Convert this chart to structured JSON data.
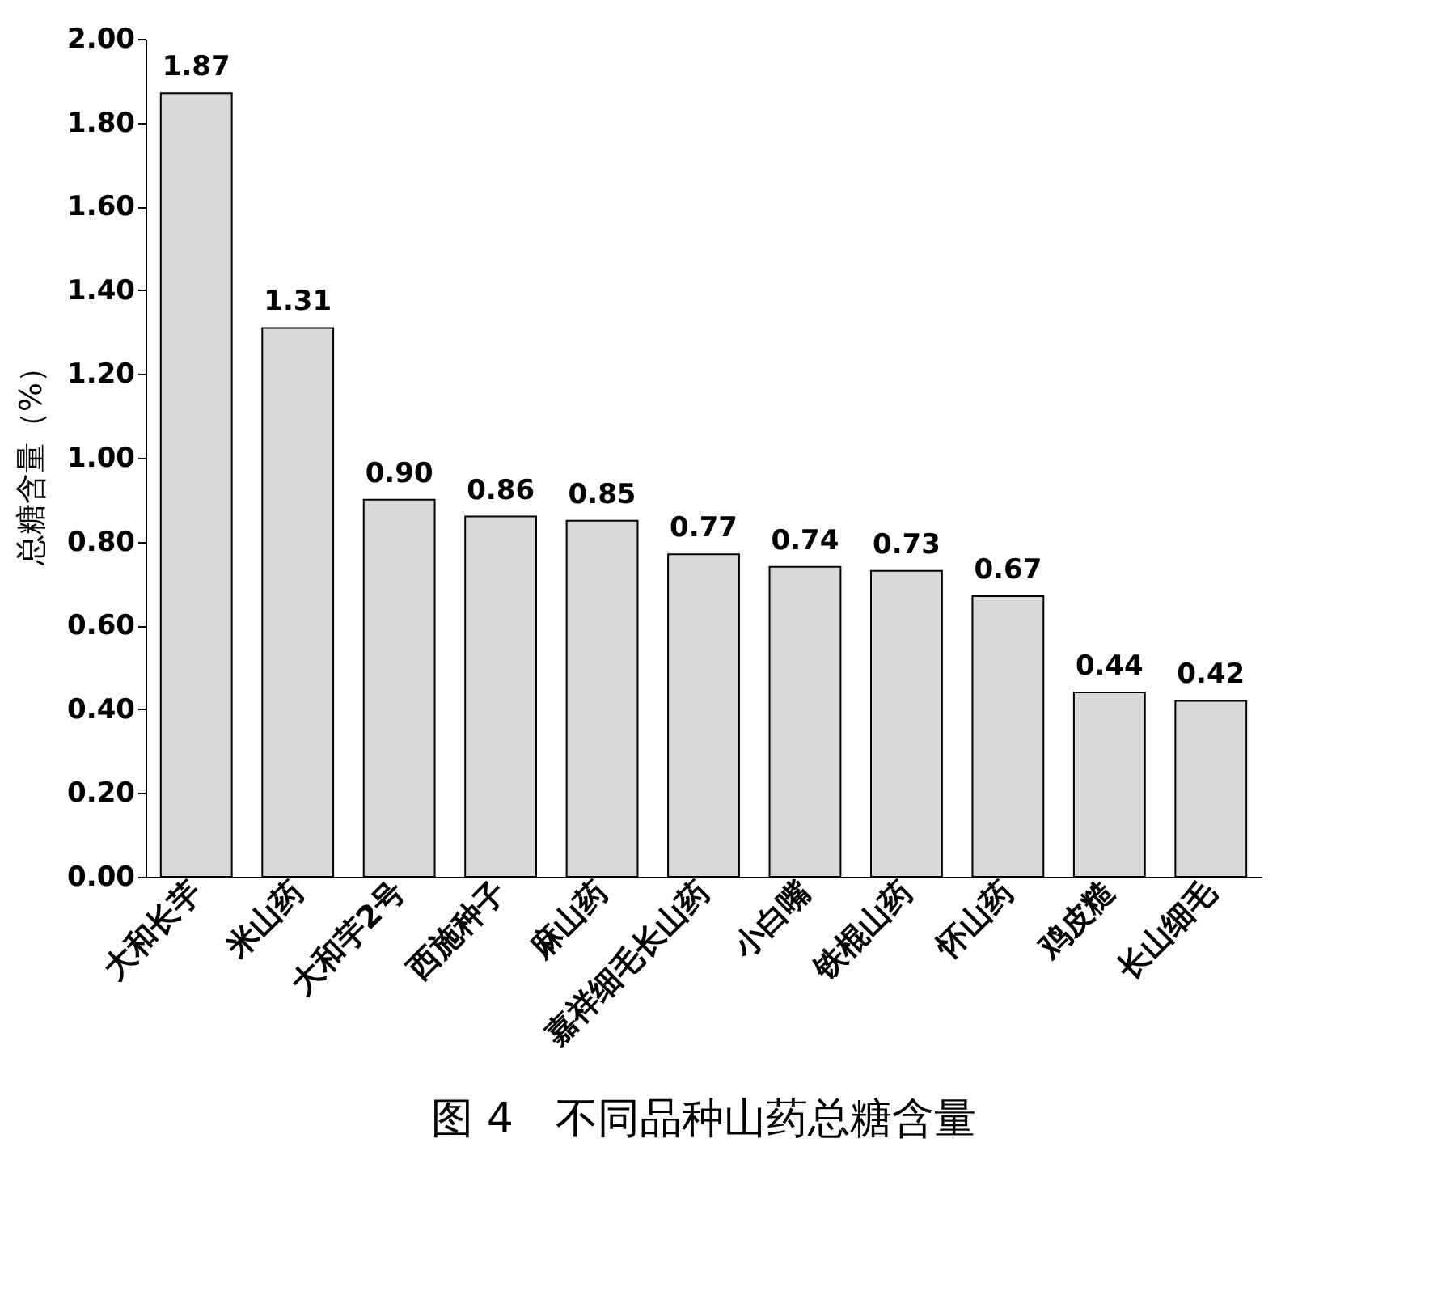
{
  "chart_data": {
    "type": "bar",
    "title": "图 4　不同品种山药总糖含量",
    "ylabel": "总糖含量（%）",
    "categories": [
      "大和长芋",
      "米山药",
      "大和芋2号",
      "西施种子",
      "麻山药",
      "嘉祥细毛长山药",
      "小白嘴",
      "铁棍山药",
      "怀山药",
      "鸡皮糙",
      "长山细毛"
    ],
    "values": [
      1.87,
      1.31,
      0.9,
      0.86,
      0.85,
      0.77,
      0.74,
      0.73,
      0.67,
      0.44,
      0.42
    ],
    "value_labels": [
      "1.87",
      "1.31",
      "0.90",
      "0.86",
      "0.85",
      "0.77",
      "0.74",
      "0.73",
      "0.67",
      "0.44",
      "0.42"
    ],
    "color": "#d9d9d9",
    "ylim": [
      0,
      2
    ],
    "yticks": [
      {
        "value": 0,
        "label": "0.00"
      },
      {
        "value": 0.2,
        "label": "0.20"
      },
      {
        "value": 0.4,
        "label": "0.40"
      },
      {
        "value": 0.6,
        "label": "0.60"
      },
      {
        "value": 0.8,
        "label": "0.80"
      },
      {
        "value": 1.0,
        "label": "1.00"
      },
      {
        "value": 1.2,
        "label": "1.20"
      },
      {
        "value": 1.4,
        "label": "1.40"
      },
      {
        "value": 1.6,
        "label": "1.60"
      },
      {
        "value": 1.8,
        "label": "1.80"
      },
      {
        "value": 2.0,
        "label": "2.00"
      }
    ],
    "grid": false
  }
}
